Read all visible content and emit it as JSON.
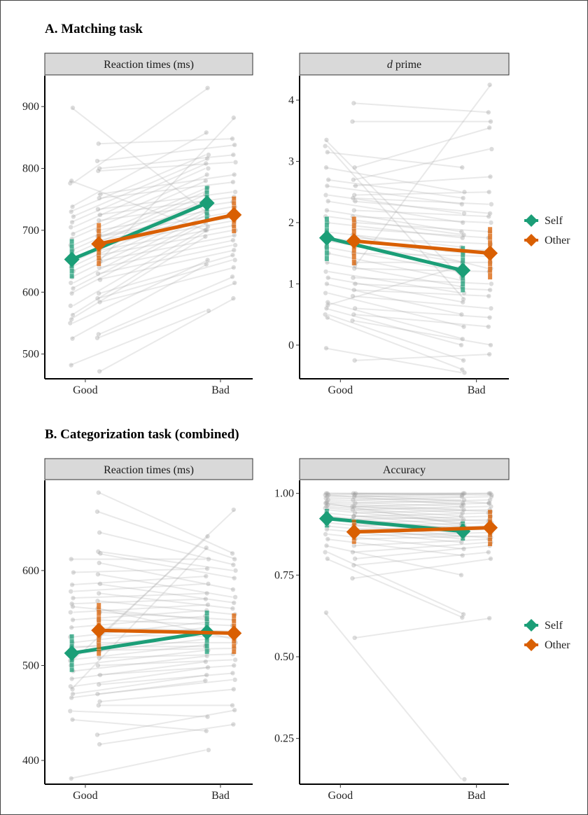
{
  "colors": {
    "self": "#1b9e77",
    "other": "#d95f02",
    "individual": "#b0b0b0",
    "strip": "#d9d9d9"
  },
  "sections": {
    "a_title": "A. Matching task",
    "b_title": "B. Categorization task (combined)"
  },
  "legend": [
    {
      "label": "Self",
      "color": "#1b9e77",
      "icon": "diamond-icon"
    },
    {
      "label": "Other",
      "color": "#d95f02",
      "icon": "diamond-icon"
    }
  ],
  "chart_data": [
    {
      "type": "line",
      "panel": "A-rt",
      "strip_title": "Reaction times (ms)",
      "categories": [
        "Good",
        "Bad"
      ],
      "ylim": [
        460,
        950
      ],
      "yticks": [
        500,
        600,
        700,
        800,
        900
      ],
      "tick_labels": [
        "500",
        "600",
        "700",
        "800",
        "900"
      ],
      "series": [
        {
          "name": "Self",
          "values": [
            653,
            744
          ],
          "ci": [
            [
              622,
              686
            ],
            [
              716,
              772
            ]
          ]
        },
        {
          "name": "Other",
          "values": [
            678,
            725
          ],
          "ci": [
            [
              642,
              712
            ],
            [
              695,
              755
            ]
          ]
        }
      ],
      "individual": {
        "self_good": [
          482,
          525,
          550,
          556,
          563,
          578,
          598,
          606,
          615,
          624,
          634,
          640,
          648,
          652,
          660,
          668,
          676,
          686,
          694,
          705,
          713,
          722,
          730,
          738,
          776,
          780,
          898
        ],
        "self_bad": [
          570,
          645,
          652,
          690,
          700,
          706,
          712,
          718,
          724,
          730,
          736,
          742,
          748,
          752,
          758,
          764,
          770,
          780,
          790,
          800,
          808,
          816,
          822,
          858,
          930,
          700,
          728
        ],
        "other_good": [
          472,
          526,
          532,
          584,
          590,
          598,
          620,
          630,
          640,
          650,
          660,
          668,
          676,
          684,
          692,
          700,
          716,
          725,
          734,
          752,
          758,
          796,
          800,
          812,
          840,
          652,
          690
        ],
        "other_bad": [
          590,
          615,
          625,
          640,
          652,
          660,
          668,
          676,
          684,
          692,
          700,
          708,
          716,
          722,
          730,
          738,
          746,
          754,
          762,
          778,
          790,
          810,
          822,
          838,
          848,
          882,
          720
        ]
      }
    },
    {
      "type": "line",
      "panel": "A-dprime",
      "strip_title_italic": "d",
      "strip_title_rest": " prime",
      "categories": [
        "Good",
        "Bad"
      ],
      "ylim": [
        -0.55,
        4.4
      ],
      "yticks": [
        0,
        1,
        2,
        3,
        4
      ],
      "tick_labels": [
        "0",
        "1",
        "2",
        "3",
        "4"
      ],
      "series": [
        {
          "name": "Self",
          "values": [
            1.75,
            1.22
          ],
          "ci": [
            [
              1.37,
              2.1
            ],
            [
              0.86,
              1.62
            ]
          ]
        },
        {
          "name": "Other",
          "values": [
            1.7,
            1.5
          ],
          "ci": [
            [
              1.3,
              2.1
            ],
            [
              1.07,
              1.93
            ]
          ]
        }
      ],
      "individual": {
        "self_good": [
          -0.05,
          0.45,
          0.5,
          0.6,
          0.7,
          0.85,
          1.0,
          1.1,
          1.2,
          1.35,
          1.5,
          1.6,
          1.7,
          1.75,
          1.85,
          2.0,
          2.1,
          2.2,
          2.35,
          2.45,
          2.6,
          2.7,
          2.9,
          3.15,
          3.25,
          3.35,
          0.65
        ],
        "self_bad": [
          -0.45,
          -0.4,
          -0.25,
          0.0,
          0.1,
          0.3,
          0.5,
          0.7,
          0.85,
          0.95,
          1.05,
          1.2,
          1.35,
          1.5,
          1.6,
          1.75,
          1.8,
          1.85,
          2.0,
          2.15,
          2.3,
          2.4,
          2.5,
          2.9,
          0.75,
          1.1,
          1.3
        ],
        "other_good": [
          -0.25,
          0.4,
          0.5,
          0.6,
          0.8,
          0.9,
          1.0,
          1.1,
          1.25,
          1.35,
          1.5,
          1.6,
          1.75,
          1.9,
          2.0,
          2.1,
          2.2,
          2.35,
          2.4,
          2.45,
          2.6,
          2.7,
          2.9,
          3.65,
          3.95,
          1.3,
          1.8
        ],
        "other_bad": [
          -0.15,
          0.0,
          0.3,
          0.45,
          0.6,
          0.8,
          0.9,
          1.0,
          1.2,
          1.35,
          1.45,
          1.55,
          1.65,
          1.75,
          1.85,
          2.0,
          2.1,
          2.15,
          2.3,
          2.5,
          2.75,
          3.2,
          3.55,
          3.65,
          3.8,
          4.25,
          1.25
        ]
      }
    },
    {
      "type": "line",
      "panel": "B-rt",
      "strip_title": "Reaction times (ms)",
      "categories": [
        "Good",
        "Bad"
      ],
      "ylim": [
        375,
        695
      ],
      "yticks": [
        400,
        500,
        600
      ],
      "tick_labels": [
        "400",
        "500",
        "600"
      ],
      "series": [
        {
          "name": "Self",
          "values": [
            513,
            535
          ],
          "ci": [
            [
              493,
              533
            ],
            [
              512,
              558
            ]
          ]
        },
        {
          "name": "Other",
          "values": [
            537,
            534
          ],
          "ci": [
            [
              510,
              566
            ],
            [
              512,
              555
            ]
          ]
        }
      ],
      "individual": {
        "self_good": [
          381,
          443,
          452,
          466,
          470,
          478,
          486,
          494,
          500,
          506,
          512,
          518,
          524,
          530,
          540,
          548,
          556,
          565,
          571,
          578,
          585,
          598,
          612,
          475,
          505,
          520,
          562
        ],
        "self_bad": [
          411,
          431,
          446,
          484,
          490,
          498,
          504,
          510,
          516,
          522,
          528,
          534,
          540,
          546,
          552,
          558,
          564,
          570,
          576,
          586,
          594,
          602,
          612,
          624,
          636,
          520,
          548
        ],
        "other_good": [
          417,
          427,
          458,
          462,
          470,
          480,
          490,
          500,
          508,
          516,
          524,
          532,
          540,
          548,
          556,
          568,
          576,
          586,
          596,
          608,
          618,
          620,
          640,
          662,
          682,
          530,
          560
        ],
        "other_bad": [
          438,
          453,
          458,
          475,
          485,
          492,
          500,
          506,
          512,
          518,
          524,
          530,
          536,
          542,
          548,
          554,
          560,
          566,
          572,
          580,
          592,
          600,
          606,
          612,
          618,
          664,
          528
        ]
      }
    },
    {
      "type": "line",
      "panel": "B-acc",
      "strip_title": "Accuracy",
      "categories": [
        "Good",
        "Bad"
      ],
      "ylim": [
        0.11,
        1.04
      ],
      "yticks": [
        0.25,
        0.5,
        0.75,
        1.0
      ],
      "tick_labels": [
        "0.25",
        "0.50",
        "0.75",
        "1.00"
      ],
      "series": [
        {
          "name": "Self",
          "values": [
            0.923,
            0.884
          ],
          "ci": [
            [
              0.895,
              0.953
            ],
            [
              0.855,
              0.915
            ]
          ]
        },
        {
          "name": "Other",
          "values": [
            0.882,
            0.895
          ],
          "ci": [
            [
              0.845,
              0.92
            ],
            [
              0.838,
              0.95
            ]
          ]
        }
      ],
      "individual": {
        "self_good": [
          0.635,
          0.8,
          0.82,
          0.84,
          0.86,
          0.875,
          0.89,
          0.9,
          0.91,
          0.92,
          0.93,
          0.94,
          0.95,
          0.955,
          0.96,
          0.965,
          0.97,
          0.975,
          0.98,
          0.985,
          0.99,
          0.995,
          1.0,
          1.0,
          0.995,
          0.97,
          0.93
        ],
        "self_bad": [
          0.125,
          0.62,
          0.63,
          0.75,
          0.81,
          0.83,
          0.85,
          0.86,
          0.87,
          0.88,
          0.89,
          0.9,
          0.91,
          0.92,
          0.93,
          0.94,
          0.95,
          0.96,
          0.97,
          0.98,
          0.99,
          1.0,
          1.0,
          0.995,
          0.965,
          0.905,
          0.875
        ],
        "other_good": [
          0.558,
          0.74,
          0.78,
          0.8,
          0.82,
          0.84,
          0.86,
          0.87,
          0.88,
          0.89,
          0.9,
          0.91,
          0.92,
          0.93,
          0.94,
          0.95,
          0.96,
          0.97,
          0.98,
          0.99,
          1.0,
          1.0,
          0.995,
          0.96,
          0.93,
          0.905,
          0.885
        ],
        "other_bad": [
          0.618,
          0.8,
          0.82,
          0.84,
          0.85,
          0.86,
          0.87,
          0.88,
          0.89,
          0.9,
          0.91,
          0.92,
          0.93,
          0.94,
          0.95,
          0.96,
          0.97,
          0.98,
          0.99,
          1.0,
          1.0,
          0.995,
          0.97,
          0.945,
          0.915,
          0.895,
          0.865
        ]
      }
    }
  ]
}
